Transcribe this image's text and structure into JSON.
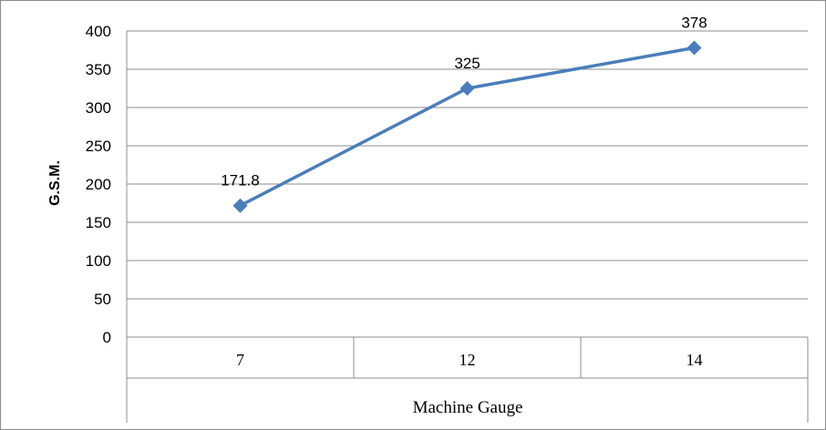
{
  "chart_data": {
    "type": "line",
    "title": "",
    "xlabel": "Machine Gauge",
    "ylabel": "G.S.M.",
    "categories": [
      "7",
      "12",
      "14"
    ],
    "series": [
      {
        "values": [
          171.8,
          325,
          378
        ],
        "data_labels": [
          "171.8",
          "325",
          "378"
        ],
        "color": "#4a7ebb"
      }
    ],
    "ylim": [
      0,
      400
    ],
    "yticks": [
      "0",
      "50",
      "100",
      "150",
      "200",
      "250",
      "300",
      "350",
      "400"
    ],
    "grid": true,
    "legend": "none",
    "marker": "diamond"
  }
}
